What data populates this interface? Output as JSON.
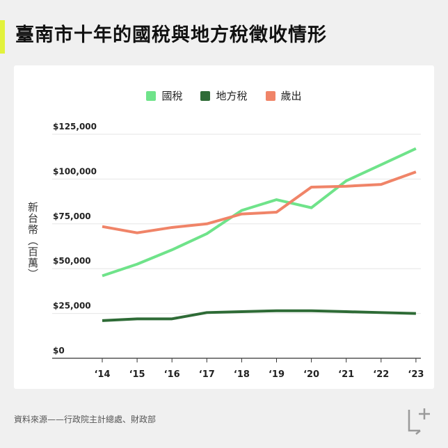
{
  "title": "臺南市十年的國稅與地方稅徵收情形",
  "source": "資料來源——行政院主計總處、財政部",
  "colors": {
    "accent": "#e2f23c",
    "national_tax": "#6fe38a",
    "local_tax": "#2e6b36",
    "expenditure": "#f08468"
  },
  "logo": {
    "icon": "plus-logo-icon"
  },
  "chart_data": {
    "type": "line",
    "title": "臺南市十年的國稅與地方稅徵收情形",
    "xlabel": "",
    "ylabel": "新台幣（百萬）",
    "categories": [
      "‘14",
      "‘15",
      "‘16",
      "‘17",
      "‘18",
      "‘19",
      "‘20",
      "‘21",
      "‘22",
      "‘23"
    ],
    "ylim": [
      0,
      125000
    ],
    "yticks": [
      0,
      25000,
      50000,
      75000,
      100000,
      125000
    ],
    "ytick_labels": [
      "$0",
      "$25,000",
      "$50,000",
      "$75,000",
      "$100,000",
      "$125,000"
    ],
    "grid": true,
    "legend_position": "top-center",
    "series": [
      {
        "name": "國稅",
        "color": "#6fe38a",
        "values": [
          46000,
          52500,
          60500,
          69500,
          82500,
          88500,
          84000,
          99000,
          108000,
          117000
        ]
      },
      {
        "name": "地方稅",
        "color": "#2e6b36",
        "values": [
          21000,
          22000,
          22000,
          25500,
          26000,
          26500,
          26500,
          26000,
          25500,
          25000
        ]
      },
      {
        "name": "歲出",
        "color": "#f08468",
        "values": [
          73500,
          70000,
          73000,
          75000,
          80500,
          81500,
          95500,
          96000,
          97000,
          104000
        ]
      }
    ]
  }
}
